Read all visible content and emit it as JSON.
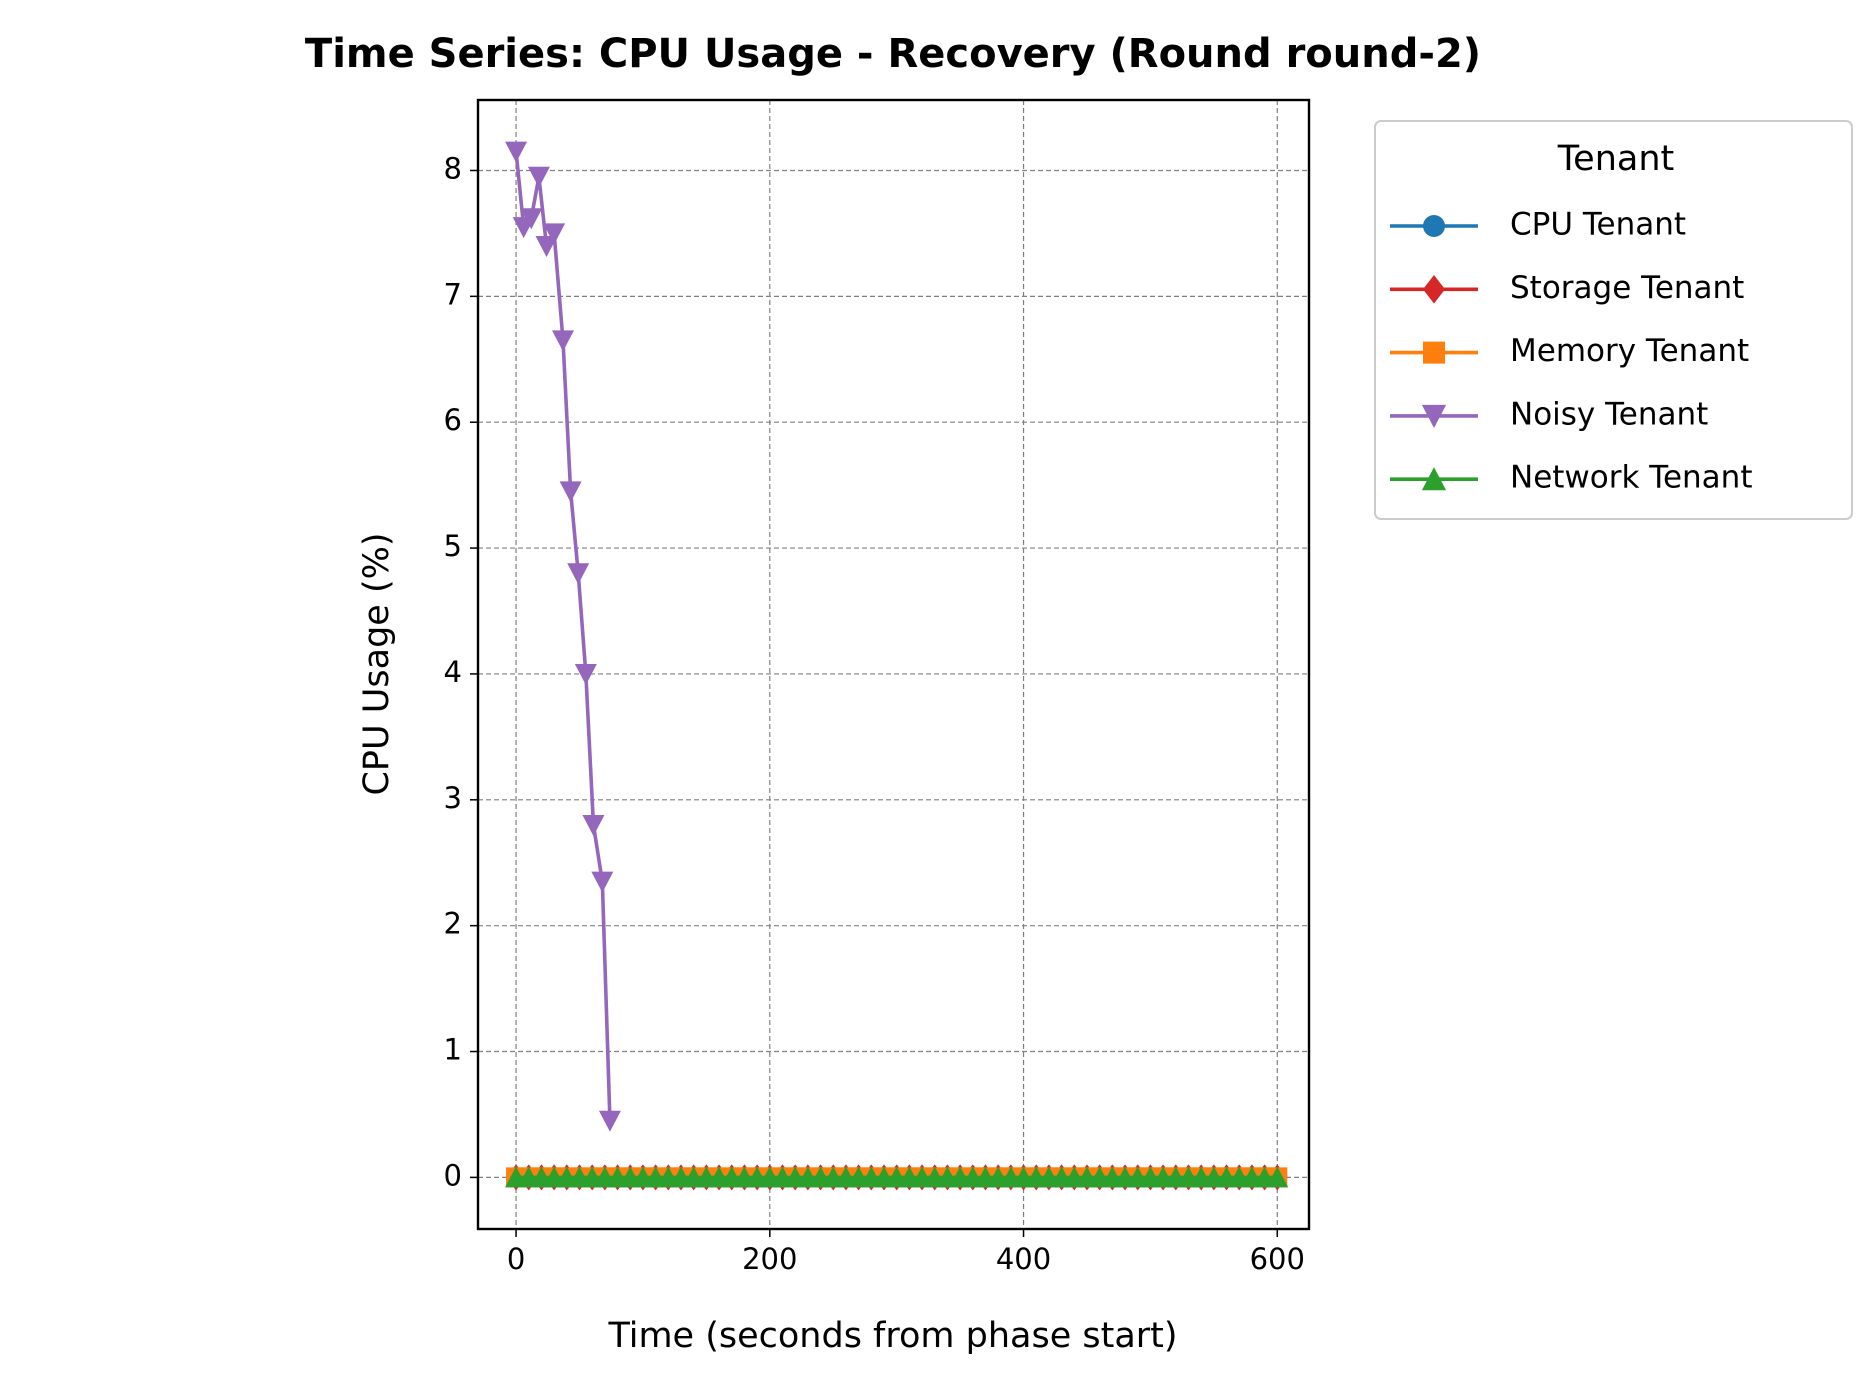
{
  "chart_data": {
    "type": "line",
    "title": "Time Series: CPU Usage - Recovery (Round round-2)",
    "x_label": "Time (seconds from phase start)",
    "y_label": "CPU Usage (%)",
    "legend_title": "Tenant",
    "legend": "outside upper right",
    "grid": true,
    "xlim": [
      -30,
      625
    ],
    "ylim": [
      -0.41,
      8.56
    ],
    "xticks": [
      0,
      200,
      400,
      600
    ],
    "yticks": [
      0,
      1,
      2,
      3,
      4,
      5,
      6,
      7,
      8
    ],
    "series": [
      {
        "name": "CPU Tenant",
        "color": "#1f77b4",
        "marker": "circle",
        "x": [
          0,
          10,
          20,
          30,
          40,
          50,
          60,
          70,
          80,
          90,
          100,
          110,
          120,
          130,
          140,
          150,
          160,
          170,
          180,
          190,
          200,
          210,
          220,
          230,
          240,
          250,
          260,
          270,
          280,
          290,
          300,
          310,
          320,
          330,
          340,
          350,
          360,
          370,
          380,
          390,
          400,
          410,
          420,
          430,
          440,
          450,
          460,
          470,
          480,
          490,
          500,
          510,
          520,
          530,
          540,
          550,
          560,
          570,
          580,
          590,
          600
        ],
        "values": [
          0,
          0,
          0,
          0,
          0,
          0,
          0,
          0,
          0,
          0,
          0,
          0,
          0,
          0,
          0,
          0,
          0,
          0,
          0,
          0,
          0,
          0,
          0,
          0,
          0,
          0,
          0,
          0,
          0,
          0,
          0,
          0,
          0,
          0,
          0,
          0,
          0,
          0,
          0,
          0,
          0,
          0,
          0,
          0,
          0,
          0,
          0,
          0,
          0,
          0,
          0,
          0,
          0,
          0,
          0,
          0,
          0,
          0,
          0,
          0,
          0
        ]
      },
      {
        "name": "Storage Tenant",
        "color": "#d62728",
        "marker": "diamond",
        "x": [
          0,
          10,
          20,
          30,
          40,
          50,
          60,
          70,
          80,
          90,
          100,
          110,
          120,
          130,
          140,
          150,
          160,
          170,
          180,
          190,
          200,
          210,
          220,
          230,
          240,
          250,
          260,
          270,
          280,
          290,
          300,
          310,
          320,
          330,
          340,
          350,
          360,
          370,
          380,
          390,
          400,
          410,
          420,
          430,
          440,
          450,
          460,
          470,
          480,
          490,
          500,
          510,
          520,
          530,
          540,
          550,
          560,
          570,
          580,
          590,
          600
        ],
        "values": [
          0,
          0,
          0,
          0,
          0,
          0,
          0,
          0,
          0,
          0,
          0,
          0,
          0,
          0,
          0,
          0,
          0,
          0,
          0,
          0,
          0,
          0,
          0,
          0,
          0,
          0,
          0,
          0,
          0,
          0,
          0,
          0,
          0,
          0,
          0,
          0,
          0,
          0,
          0,
          0,
          0,
          0,
          0,
          0,
          0,
          0,
          0,
          0,
          0,
          0,
          0,
          0,
          0,
          0,
          0,
          0,
          0,
          0,
          0,
          0,
          0
        ]
      },
      {
        "name": "Memory Tenant",
        "color": "#ff7f0e",
        "marker": "square",
        "x": [
          0,
          10,
          20,
          30,
          40,
          50,
          60,
          70,
          80,
          90,
          100,
          110,
          120,
          130,
          140,
          150,
          160,
          170,
          180,
          190,
          200,
          210,
          220,
          230,
          240,
          250,
          260,
          270,
          280,
          290,
          300,
          310,
          320,
          330,
          340,
          350,
          360,
          370,
          380,
          390,
          400,
          410,
          420,
          430,
          440,
          450,
          460,
          470,
          480,
          490,
          500,
          510,
          520,
          530,
          540,
          550,
          560,
          570,
          580,
          590,
          600
        ],
        "values": [
          0,
          0,
          0,
          0,
          0,
          0,
          0,
          0,
          0,
          0,
          0,
          0,
          0,
          0,
          0,
          0,
          0,
          0,
          0,
          0,
          0,
          0,
          0,
          0,
          0,
          0,
          0,
          0,
          0,
          0,
          0,
          0,
          0,
          0,
          0,
          0,
          0,
          0,
          0,
          0,
          0,
          0,
          0,
          0,
          0,
          0,
          0,
          0,
          0,
          0,
          0,
          0,
          0,
          0,
          0,
          0,
          0,
          0,
          0,
          0,
          0
        ]
      },
      {
        "name": "Noisy Tenant",
        "color": "#9467bd",
        "marker": "triangle-down",
        "x": [
          0,
          6,
          12,
          18,
          24,
          30,
          37,
          43,
          49,
          55,
          61,
          68,
          74
        ],
        "values": [
          8.15,
          7.55,
          7.62,
          7.95,
          7.4,
          7.5,
          6.65,
          5.45,
          4.8,
          4.0,
          2.8,
          2.35,
          0.45
        ]
      },
      {
        "name": "Network Tenant",
        "color": "#2ca02c",
        "marker": "triangle-up",
        "x": [
          0,
          10,
          20,
          30,
          40,
          50,
          60,
          70,
          80,
          90,
          100,
          110,
          120,
          130,
          140,
          150,
          160,
          170,
          180,
          190,
          200,
          210,
          220,
          230,
          240,
          250,
          260,
          270,
          280,
          290,
          300,
          310,
          320,
          330,
          340,
          350,
          360,
          370,
          380,
          390,
          400,
          410,
          420,
          430,
          440,
          450,
          460,
          470,
          480,
          490,
          500,
          510,
          520,
          530,
          540,
          550,
          560,
          570,
          580,
          590,
          600
        ],
        "values": [
          0,
          0,
          0,
          0,
          0,
          0,
          0,
          0,
          0,
          0,
          0,
          0,
          0,
          0,
          0,
          0,
          0,
          0,
          0,
          0,
          0,
          0,
          0,
          0,
          0,
          0,
          0,
          0,
          0,
          0,
          0,
          0,
          0,
          0,
          0,
          0,
          0,
          0,
          0,
          0,
          0,
          0,
          0,
          0,
          0,
          0,
          0,
          0,
          0,
          0,
          0,
          0,
          0,
          0,
          0,
          0,
          0,
          0,
          0,
          0,
          0
        ]
      }
    ]
  }
}
